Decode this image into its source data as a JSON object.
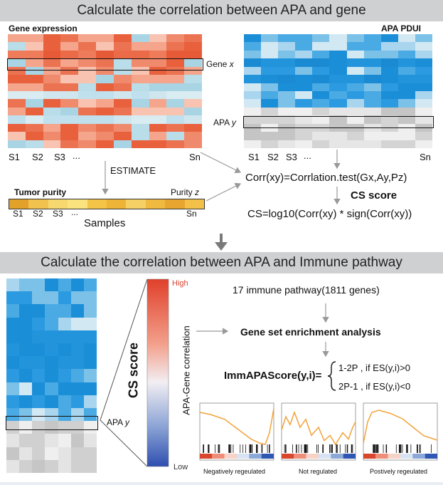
{
  "panel1": {
    "title": "Calculate the correlation between APA and gene",
    "gene_expression_label": "Gene expression",
    "apa_pdui_label": "APA PDUI",
    "gene_x_label": "Gene",
    "gene_x_var": "x",
    "apa_y_label": "APA",
    "apa_y_var": "y",
    "samples_left": [
      "S1",
      "S2",
      "S3",
      "..."
    ],
    "samples_left_last": "Sn",
    "samples_right": [
      "S1",
      "S2",
      "S3",
      "..."
    ],
    "samples_right_last": "Sn",
    "estimate_label": "ESTIMATE",
    "tumor_purity_label": "Tumor purity",
    "purity_z_label": "Purity",
    "purity_z_var": "z",
    "purity_samples": [
      "S1",
      "S2",
      "S3",
      "..."
    ],
    "purity_samples_last": "Sn",
    "samples_label": "Samples",
    "corr_formula": "Corr(xy)=Corrlation.test(Gx,Ay,Pz)",
    "cs_score_label": "CS score",
    "cs_formula": "CS=log10(Corr(xy) * sign(Corr(xy))"
  },
  "panel2": {
    "title": "Calculate the correlation between APA and Immune pathway",
    "colorbar_high": "High",
    "colorbar_low": "Low",
    "colorbar_axis_label": "APA-Gene correlation",
    "cs_score_vertical": "CS score",
    "apa_y_label": "APA",
    "apa_y_var": "y",
    "pathway_text": "17 immune pathway(1811 genes)",
    "gsea_text": "Gene set enrichment analysis",
    "immapa_label": "ImmAPAScore(y,i)=",
    "case1": "1-2P , if ES(y,i)>0",
    "case2": "2P-1 , if ES(y,i)<0",
    "plots": [
      {
        "label": "Negatively regeulated"
      },
      {
        "label": "Not regulated"
      },
      {
        "label": "Postively regeulated"
      }
    ]
  },
  "colors": {
    "orange_dark": "#e8603c",
    "orange_mid": "#f29a7e",
    "blue_dark": "#1b8ed8",
    "blue_light": "#bfe0ef",
    "curve": "#f2a23a",
    "panel_header": "#cfd0d2"
  }
}
